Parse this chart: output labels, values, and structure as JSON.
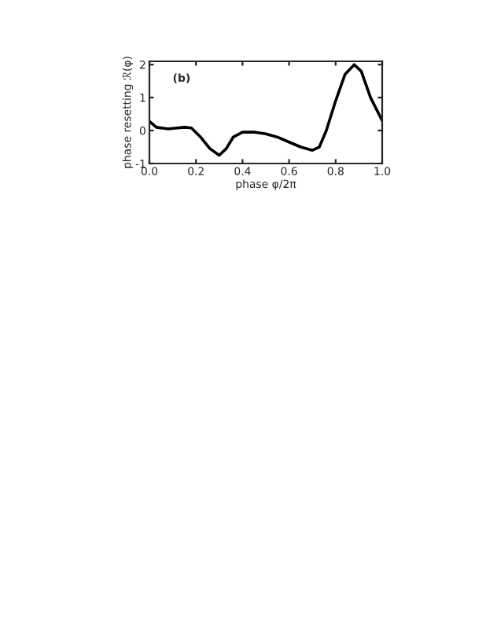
{
  "chart_data": {
    "type": "line",
    "xlabel": "phase φ/2π",
    "ylabel": "phase resetting ℛ(φ)",
    "annotations": [
      "(b)"
    ],
    "series": [
      {
        "color": "#000000",
        "x": [
          0,
          0.03,
          0.08,
          0.15,
          0.18,
          0.22,
          0.26,
          0.3,
          0.33,
          0.36,
          0.4,
          0.45,
          0.5,
          0.55,
          0.6,
          0.65,
          0.7,
          0.73,
          0.76,
          0.8,
          0.84,
          0.88,
          0.91,
          0.95,
          1.0
        ],
        "values": [
          0.28,
          0.1,
          0.05,
          0.1,
          0.08,
          -0.2,
          -0.55,
          -0.75,
          -0.55,
          -0.2,
          -0.05,
          -0.05,
          -0.1,
          -0.2,
          -0.35,
          -0.5,
          -0.6,
          -0.5,
          0,
          0.9,
          1.7,
          2.0,
          1.8,
          1.0,
          0.3
        ]
      }
    ],
    "xlim": [
      0,
      1
    ],
    "ylim": [
      -1,
      2.1
    ],
    "xticks": [
      {
        "value": 0,
        "label": "0.0"
      },
      0.2,
      0.4,
      0.6,
      0.8,
      {
        "value": 1,
        "label": "1.0"
      }
    ],
    "yticks": [
      -1,
      0,
      1,
      2
    ],
    "grid": false,
    "legend": false,
    "line_style": "solid",
    "marker": "none"
  }
}
